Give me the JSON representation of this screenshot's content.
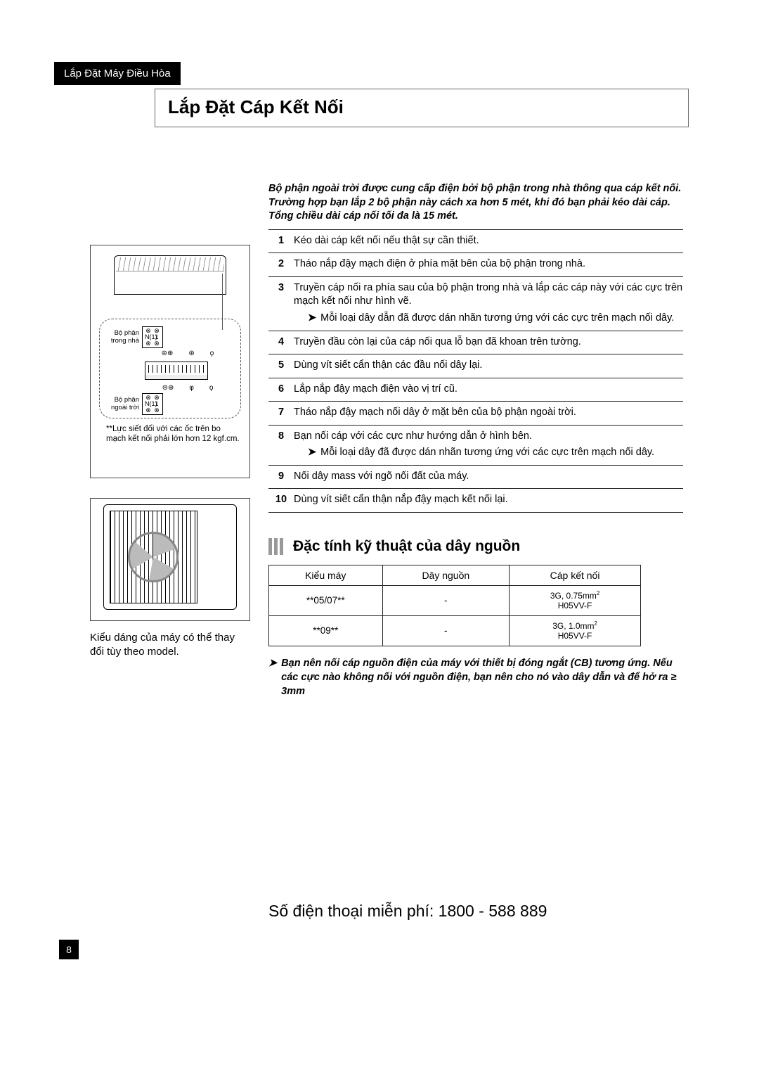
{
  "header_tab": "Lắp Đặt Máy Điều Hòa",
  "title": "Lắp Đặt Cáp Kết Nối",
  "intro": "Bộ phận ngoài trời được cung cấp điện bởi bộ phận trong nhà thông qua cáp kết nối. Trường hợp bạn lắp 2 bộ phận này cách xa hơn 5 mét, khi đó bạn phải kéo dài cáp. Tổng chiều dài cáp nối tối đa là 15 mét.",
  "steps": [
    {
      "n": "1",
      "t": "Kéo dài cáp kết nối nếu thật sự cần thiết."
    },
    {
      "n": "2",
      "t": "Tháo nắp đậy mạch điện ở phía mặt bên của bộ phận trong nhà."
    },
    {
      "n": "3",
      "t": "Truyền cáp nối ra phía sau của bộ phận trong nhà và lắp các cáp này với các cực trên mạch kết nối như hình vẽ.",
      "sub": "Mỗi loại dây dẫn đã được dán nhãn tương ứng với các cực trên mạch nối dây."
    },
    {
      "n": "4",
      "t": "Truyền đầu còn lại của cáp nối qua lỗ bạn đã khoan trên tường."
    },
    {
      "n": "5",
      "t": "Dùng vít siết cẩn thận các đầu nối dây lại."
    },
    {
      "n": "6",
      "t": "Lắp nắp đậy mạch điện vào vị trí cũ."
    },
    {
      "n": "7",
      "t": "Tháo nắp đậy mạch nối dây ở mặt bên của bộ phận ngoài trời."
    },
    {
      "n": "8",
      "t": "Bạn nối cáp với các cực như hướng dẫn ở hình bên.",
      "sub": "Mỗi loại dây đã được dán nhãn tương ứng với các cực trên mạch nối dây."
    },
    {
      "n": "9",
      "t": "Nối dây mass với ngõ nối đất của máy."
    },
    {
      "n": "10",
      "t": "Dùng vít siết cẩn thận nắp đậy mạch kết nối lại."
    }
  ],
  "diagram": {
    "label_indoor": "Bộ phận trong nhà",
    "label_outdoor": "Bộ phận ngoài trời",
    "term1": "N(1)",
    "term2": "1",
    "torque_note": "**Lực siết đối với các ốc trên bo mạch kết nối phải lớn hơn 12 kgf.cm."
  },
  "model_note": "Kiểu dáng của máy có thể thay đổi tùy theo model.",
  "spec_heading": "Đặc tính kỹ thuật của dây nguồn",
  "spec_table": {
    "cols": [
      "Kiểu máy",
      "Dây nguồn",
      "Cáp kết nối"
    ],
    "r1": {
      "c0": "**05/07**",
      "c1": "-",
      "c2a": "3G, 0.75mm",
      "c2b": "H05VV-F"
    },
    "r2": {
      "c0": "**09**",
      "c1": "-",
      "c2a": "3G, 1.0mm",
      "c2b": "H05VV-F"
    }
  },
  "foot_note": "Bạn nên nối cáp nguồn điện của máy với thiết bị đóng ngắt (CB) tương ứng. Nếu các cực nào không nối với nguồn điện, bạn nên cho nó vào dây dẫn và để hở ra ≥ 3mm",
  "hotline": "Số điện thoại miễn phí: 1800 - 588 889",
  "page": "8"
}
